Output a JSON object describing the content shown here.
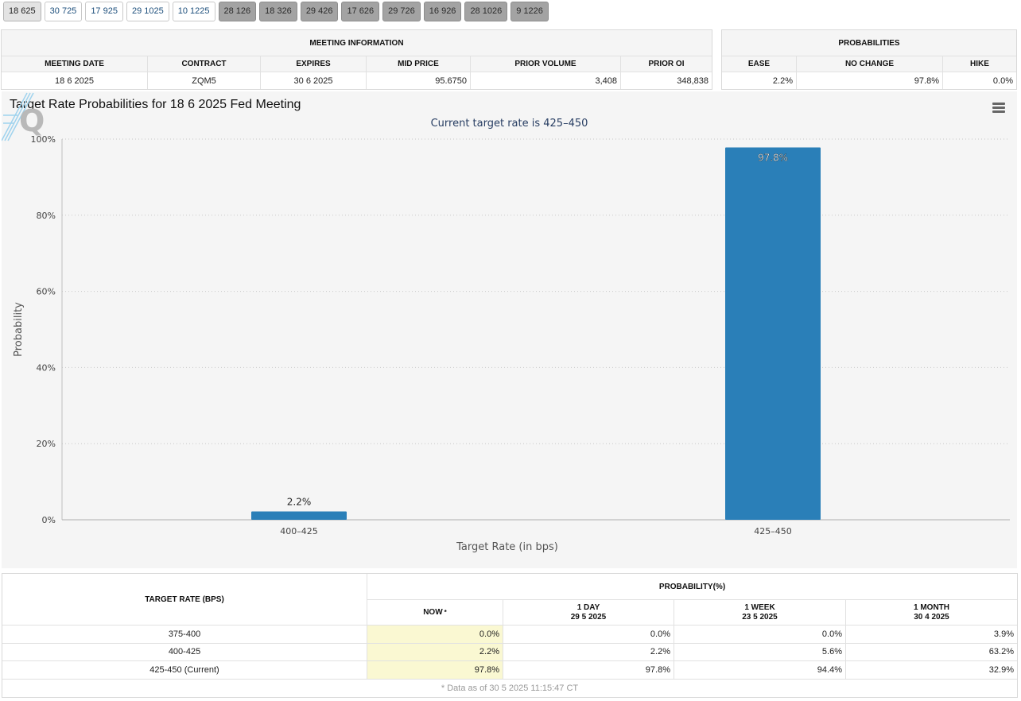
{
  "tabs": [
    {
      "label": "18 625",
      "style": "active"
    },
    {
      "label": "30 725",
      "style": "light"
    },
    {
      "label": "17 925",
      "style": "light"
    },
    {
      "label": "29 1025",
      "style": "light"
    },
    {
      "label": "10 1225",
      "style": "light"
    },
    {
      "label": "28 126",
      "style": "dark"
    },
    {
      "label": "18 326",
      "style": "dark"
    },
    {
      "label": "29 426",
      "style": "dark"
    },
    {
      "label": "17 626",
      "style": "dark"
    },
    {
      "label": "29 726",
      "style": "dark"
    },
    {
      "label": "16 926",
      "style": "dark"
    },
    {
      "label": "28 1026",
      "style": "dark"
    },
    {
      "label": "9 1226",
      "style": "dark"
    }
  ],
  "meeting_info": {
    "title": "MEETING INFORMATION",
    "headers": [
      "MEETING DATE",
      "CONTRACT",
      "EXPIRES",
      "MID PRICE",
      "PRIOR VOLUME",
      "PRIOR OI"
    ],
    "values": [
      "18 6 2025",
      "ZQM5",
      "30 6 2025",
      "95.6750",
      "3,408",
      "348,838"
    ]
  },
  "probabilities": {
    "title": "PROBABILITIES",
    "headers": [
      "EASE",
      "NO CHANGE",
      "HIKE"
    ],
    "values": [
      "2.2%",
      "97.8%",
      "0.0%"
    ]
  },
  "chart_title": "Target Rate Probabilities for 18 6 2025 Fed Meeting",
  "chart_data": {
    "type": "bar",
    "title": "Target Rate Probabilities for 18 6 2025 Fed Meeting",
    "subtitle": "Current target rate is 425–450",
    "categories": [
      "400–425",
      "425–450"
    ],
    "values": [
      2.2,
      97.8
    ],
    "data_labels": [
      "2.2%",
      "97.8%"
    ],
    "xlabel": "Target Rate (in bps)",
    "ylabel": "Probability",
    "ylim": [
      0,
      100
    ],
    "yticks": [
      0,
      20,
      40,
      60,
      80,
      100
    ],
    "ytick_labels": [
      "0%",
      "20%",
      "40%",
      "60%",
      "80%",
      "100%"
    ],
    "grid": true,
    "bar_color": "#2a7fb8"
  },
  "bottom_table": {
    "target_header": "TARGET RATE (BPS)",
    "prob_header": "PROBABILITY(%)",
    "now_label": "NOW",
    "now_mark": "*",
    "columns": [
      {
        "label": "1 DAY",
        "date": "29 5 2025"
      },
      {
        "label": "1 WEEK",
        "date": "23 5 2025"
      },
      {
        "label": "1 MONTH",
        "date": "30 4 2025"
      }
    ],
    "rows": [
      {
        "rate": "375-400",
        "now": "0.0%",
        "day": "0.0%",
        "week": "0.0%",
        "month": "3.9%"
      },
      {
        "rate": "400-425",
        "now": "2.2%",
        "day": "2.2%",
        "week": "5.6%",
        "month": "63.2%"
      },
      {
        "rate": "425-450 (Current)",
        "now": "97.8%",
        "day": "97.8%",
        "week": "94.4%",
        "month": "32.9%"
      }
    ],
    "footer": "* Data as of 30 5 2025 11:15:47 CT"
  },
  "colors": {
    "now_highlight": "#faf8d2",
    "subtitle": "#283e63"
  },
  "icons": [
    "hamburger-menu-icon",
    "quikstrike-logo-icon"
  ]
}
